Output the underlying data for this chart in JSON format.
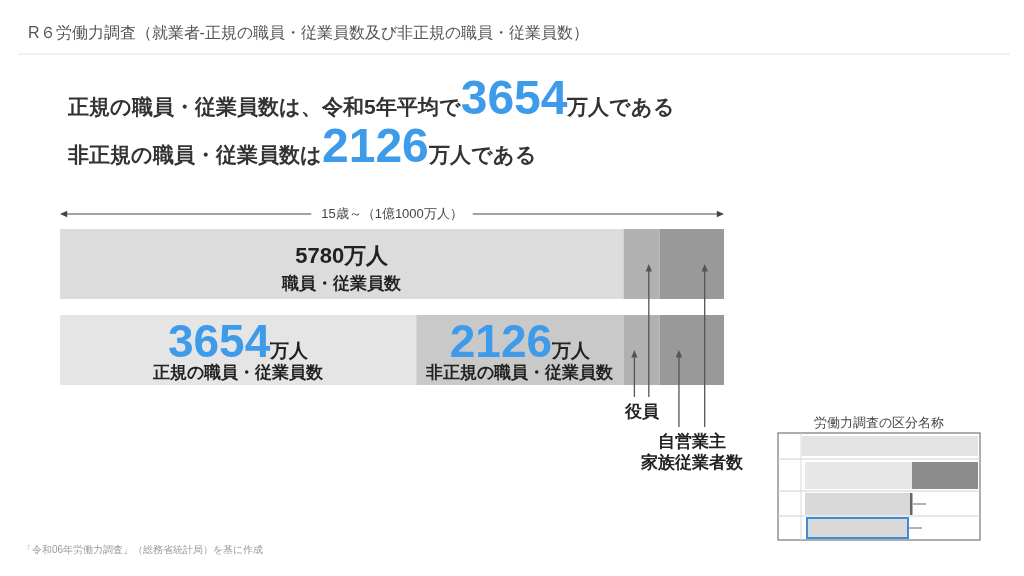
{
  "chart_data": {
    "type": "bar",
    "orientation": "horizontal",
    "stacked": true,
    "title": "R６労働力調査（就業者-正規の職員・従業員数及び非正規の職員・従業員数）",
    "categories": [
      null,
      null
    ],
    "series": [
      {
        "name": "職員・従業員数",
        "color": "#dcdcdc",
        "values": [
          5780,
          null
        ],
        "value_labels": [
          "5780万人",
          null
        ]
      },
      {
        "name": "正規の職員・従業員数",
        "color": "#e5e5e5",
        "values": [
          null,
          3654
        ],
        "value_labels": [
          null,
          "3654万人"
        ]
      },
      {
        "name": "非正規の職員・従業員数",
        "color": "#c9c9c9",
        "values": [
          null,
          2126
        ],
        "value_labels": [
          null,
          "2126万人"
        ]
      },
      {
        "name": "役員",
        "color": "#b1b1b1",
        "values": [
          370,
          370
        ]
      },
      {
        "name": "自営業主家族従業者数",
        "color": "#999999",
        "values": [
          660,
          660
        ]
      }
    ],
    "annotations": [
      "正規の職員・従業員数は、令和5年平均で3654万人である",
      "非正規の職員・従業員数は2126万人である",
      "15歳～（1億1000万人）",
      "労働力調査の区分名称",
      "「令和06年労働力調査」（総務省統計局）を基に作成"
    ]
  }
}
